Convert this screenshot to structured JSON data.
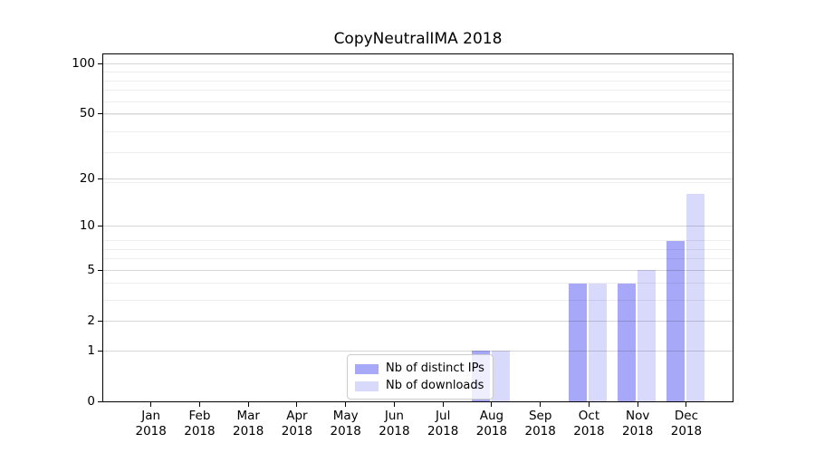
{
  "title": "CopyNeutralIMA 2018",
  "chart_data": {
    "type": "bar",
    "title": "CopyNeutralIMA 2018",
    "x_categories": [
      "Jan",
      "Feb",
      "Mar",
      "Apr",
      "May",
      "Jun",
      "Jul",
      "Aug",
      "Sep",
      "Oct",
      "Nov",
      "Dec"
    ],
    "x_year": "2018",
    "series": [
      {
        "name": "Nb of distinct IPs",
        "color": "#a8a8f8",
        "values": [
          0,
          0,
          0,
          0,
          0,
          0,
          0,
          1,
          0,
          4,
          4,
          8
        ]
      },
      {
        "name": "Nb of downloads",
        "color": "#d9dafb",
        "values": [
          0,
          0,
          0,
          0,
          0,
          0,
          0,
          1,
          0,
          4,
          5,
          16
        ]
      }
    ],
    "yscale": "log1p",
    "y_ticks_major": [
      0,
      1,
      2,
      5,
      10,
      20,
      50,
      100
    ],
    "y_ticks_minor": [
      3,
      4,
      6,
      7,
      8,
      19,
      29,
      39,
      49,
      59,
      69,
      79,
      89
    ],
    "ylim": [
      0,
      115
    ],
    "grid": "on",
    "legend_position": "lower-center"
  },
  "colors": {
    "background": "#ffffff",
    "spine": "#000000",
    "grid_major": "rgba(0,0,0,0.16)",
    "grid_minor": "rgba(0,0,0,0.07)",
    "legend_border": "#cccccc",
    "bar_distinct_ips": "#a8a8f8",
    "bar_downloads": "#d9dafb"
  }
}
